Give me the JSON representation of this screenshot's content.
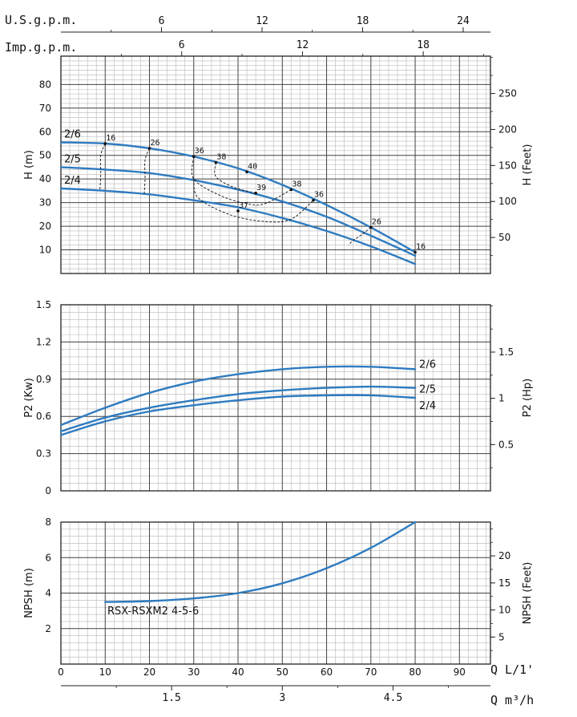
{
  "chart_data": [
    {
      "type": "line",
      "ylabel": "H (m)",
      "y2label": "H (Feet)",
      "xlim": [
        0,
        97
      ],
      "ylim": [
        0,
        92
      ],
      "yticks": [
        10,
        20,
        30,
        40,
        50,
        60,
        70,
        80
      ],
      "y2ticks": [
        50,
        100,
        150,
        200,
        250
      ],
      "feet_per_m": 3.281,
      "grid": true,
      "series": [
        {
          "name": "2/6",
          "x": [
            0,
            10,
            20,
            30,
            40,
            50,
            60,
            70,
            80
          ],
          "values": [
            55.5,
            55,
            53,
            49.5,
            44.5,
            37.5,
            29,
            19.5,
            9
          ]
        },
        {
          "name": "2/5",
          "x": [
            0,
            10,
            20,
            30,
            40,
            50,
            60,
            70,
            80
          ],
          "values": [
            45,
            44,
            42.5,
            39.5,
            35.5,
            30.5,
            24,
            16,
            7.5
          ]
        },
        {
          "name": "2/4",
          "x": [
            0,
            10,
            20,
            30,
            40,
            50,
            60,
            70,
            80
          ],
          "values": [
            36,
            35,
            33.5,
            31,
            28,
            23.5,
            18,
            11.5,
            4
          ]
        }
      ],
      "efficiency_points": [
        {
          "label": "16",
          "x": 10,
          "y": 55
        },
        {
          "label": "26",
          "x": 20,
          "y": 53
        },
        {
          "label": "36",
          "x": 30,
          "y": 49.5
        },
        {
          "label": "38",
          "x": 35,
          "y": 47
        },
        {
          "label": "40",
          "x": 42,
          "y": 43
        },
        {
          "label": "39",
          "x": 44,
          "y": 34
        },
        {
          "label": "37",
          "x": 40,
          "y": 26.5
        },
        {
          "label": "38",
          "x": 52,
          "y": 35.5
        },
        {
          "label": "36",
          "x": 57,
          "y": 31
        },
        {
          "label": "26",
          "x": 70,
          "y": 19.5
        },
        {
          "label": "16",
          "x": 80,
          "y": 9
        }
      ],
      "iso_curves": [
        {
          "x": [
            10,
            9,
            9,
            8.8
          ],
          "y": [
            55,
            50,
            42,
            35
          ]
        },
        {
          "x": [
            20,
            19,
            19,
            18.8
          ],
          "y": [
            53,
            48,
            40,
            33.5
          ]
        },
        {
          "x": [
            30,
            30,
            36,
            42,
            46,
            52
          ],
          "y": [
            49.5,
            40,
            33,
            29.5,
            29.5,
            35.5
          ]
        },
        {
          "x": [
            35,
            35,
            39,
            44
          ],
          "y": [
            47,
            41,
            36.5,
            34
          ]
        },
        {
          "x": [
            30,
            31,
            38,
            46,
            52,
            57
          ],
          "y": [
            40,
            32,
            25,
            22,
            23,
            31
          ]
        },
        {
          "x": [
            70,
            68,
            66,
            65
          ],
          "y": [
            19.5,
            16.5,
            14,
            12
          ]
        }
      ]
    },
    {
      "type": "line",
      "ylabel": "P2 (Kw)",
      "y2label": "P2 (Hp)",
      "xlim": [
        0,
        97
      ],
      "ylim": [
        0,
        1.5
      ],
      "yticks": [
        0,
        0.3,
        0.6,
        0.9,
        1.2,
        1.5
      ],
      "yticklabels": [
        "0",
        "0.3",
        "0.6",
        "0.9",
        "1.2",
        "1.5"
      ],
      "y2ticks": [
        0.5,
        1,
        1.5
      ],
      "hp_per_kw": 1.341,
      "grid": true,
      "series": [
        {
          "name": "2/6",
          "x": [
            0,
            10,
            20,
            30,
            40,
            50,
            60,
            70,
            80
          ],
          "values": [
            0.53,
            0.67,
            0.79,
            0.88,
            0.94,
            0.98,
            1.0,
            1.0,
            0.98
          ]
        },
        {
          "name": "2/5",
          "x": [
            0,
            10,
            20,
            30,
            40,
            50,
            60,
            70,
            80
          ],
          "values": [
            0.48,
            0.59,
            0.67,
            0.73,
            0.78,
            0.81,
            0.83,
            0.84,
            0.83
          ]
        },
        {
          "name": "2/4",
          "x": [
            0,
            10,
            20,
            30,
            40,
            50,
            60,
            70,
            80
          ],
          "values": [
            0.45,
            0.56,
            0.64,
            0.69,
            0.73,
            0.76,
            0.77,
            0.77,
            0.75
          ]
        }
      ]
    },
    {
      "type": "line",
      "ylabel": "NPSH (m)",
      "y2label": "NPSH (Feet)",
      "xlim": [
        0,
        97
      ],
      "ylim": [
        0,
        8
      ],
      "yticks": [
        2,
        4,
        6,
        8
      ],
      "y2ticks": [
        5,
        10,
        15,
        20
      ],
      "feet_per_m": 3.281,
      "grid": true,
      "annotation": "RSX-RSXM2 4-5-6",
      "series": [
        {
          "name": "",
          "x": [
            10,
            20,
            30,
            40,
            50,
            60,
            70,
            80
          ],
          "values": [
            3.5,
            3.55,
            3.7,
            4.0,
            4.55,
            5.4,
            6.55,
            8.0
          ]
        }
      ]
    }
  ],
  "axes": {
    "usgpm_label": "U.S.g.p.m.",
    "usgpm_ticks": [
      6,
      12,
      18,
      24
    ],
    "usgpm_per_lmin": 0.2642,
    "impgpm_label": "Imp.g.p.m.",
    "impgpm_ticks": [
      6,
      12,
      18
    ],
    "impgpm_per_lmin": 0.22,
    "lmin_label": "Q L/1'",
    "lmin_ticks": [
      0,
      10,
      20,
      30,
      40,
      50,
      60,
      70,
      80,
      90
    ],
    "m3h_label": "Q m³/h",
    "m3h_ticks": [
      "1.5",
      "3",
      "4.5"
    ],
    "m3h_per_lmin": 0.06
  },
  "colors": {
    "curve": "#2e7bc0",
    "grid_major": "#444444",
    "grid_minor": "#b8b8b8"
  }
}
